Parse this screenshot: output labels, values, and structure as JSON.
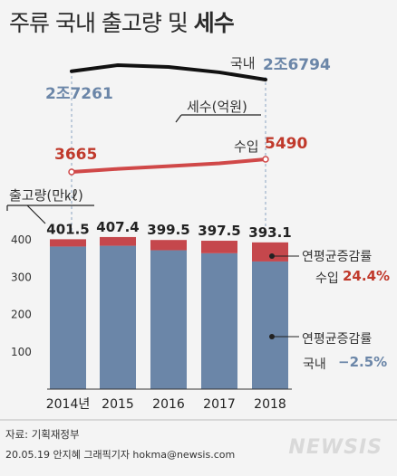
{
  "header": {
    "title_main": "주류 국내 출고량 및",
    "title_bold": "세수"
  },
  "top_line": {
    "domestic_label": "국내",
    "domestic_end_value": "2조6794",
    "domestic_start_value": "2조7261",
    "tax_unit_label": "세수(억원)",
    "import_label": "수입",
    "import_end_value": "5490",
    "import_start_value": "3665"
  },
  "annotations": {
    "import_cagr_label": "연평균증감률",
    "import_cagr_prefix": "수입",
    "import_cagr_value": "24.4%",
    "domestic_cagr_label": "연평균증감률",
    "domestic_cagr_prefix": "국내",
    "domestic_cagr_value": "−2.5%"
  },
  "footer": {
    "source": "자료: 기획재정부",
    "credit": "20.05.19 안지혜 그래픽기자 hokma@newsis.com",
    "logo": "NEWSIS"
  },
  "colors": {
    "domestic": "#6b86a8",
    "import": "#c5474c",
    "domestic_line": "#111111",
    "import_line": "#d04848"
  },
  "chart_data": [
    {
      "type": "bar",
      "stacked": true,
      "ylabel": "출고량(만㎘)",
      "categories": [
        "2014년",
        "2015",
        "2016",
        "2017",
        "2018"
      ],
      "totals": [
        401.5,
        407.4,
        399.5,
        397.5,
        393.1
      ],
      "series": [
        {
          "name": "국내",
          "values": [
            382,
            384,
            372,
            364,
            342
          ]
        },
        {
          "name": "수입",
          "values": [
            19.5,
            23.4,
            27.5,
            33.5,
            51.1
          ]
        }
      ],
      "yticks": [
        100,
        200,
        300,
        400
      ],
      "ylim": [
        0,
        420
      ]
    },
    {
      "type": "line",
      "ylabel": "세수(억원)",
      "categories": [
        "2014",
        "2015",
        "2016",
        "2017",
        "2018"
      ],
      "series": [
        {
          "name": "국내",
          "values": [
            27261,
            27600,
            27500,
            27200,
            26794
          ]
        },
        {
          "name": "수입",
          "values": [
            3665,
            4100,
            4500,
            4900,
            5490
          ]
        }
      ]
    }
  ]
}
